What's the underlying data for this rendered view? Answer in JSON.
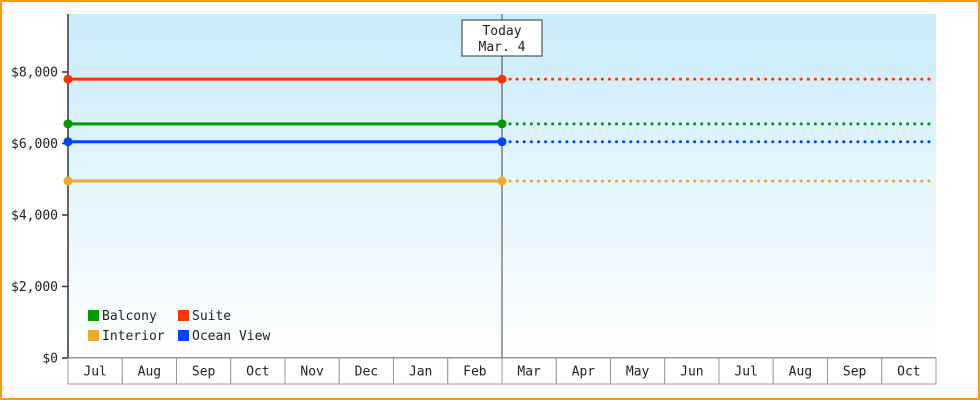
{
  "chart_data": {
    "type": "line",
    "title": "",
    "x_categories": [
      "Jul",
      "Aug",
      "Sep",
      "Oct",
      "Nov",
      "Dec",
      "Jan",
      "Feb",
      "Mar",
      "Apr",
      "May",
      "Jun",
      "Jul",
      "Aug",
      "Sep",
      "Oct"
    ],
    "y_ticks": [
      {
        "label": "$0",
        "value": 0
      },
      {
        "label": "$2,000",
        "value": 2000
      },
      {
        "label": "$4,000",
        "value": 4000
      },
      {
        "label": "$6,000",
        "value": 6000
      },
      {
        "label": "$8,000",
        "value": 8000
      }
    ],
    "ylim": [
      0,
      9600
    ],
    "series": [
      {
        "name": "Balcony",
        "color": "#009b00",
        "value": 6550
      },
      {
        "name": "Suite",
        "color": "#ff3300",
        "value": 7800
      },
      {
        "name": "Interior",
        "color": "#efaa2e",
        "value": 4950
      },
      {
        "name": "Ocean View",
        "color": "#0044ff",
        "value": 6050
      }
    ],
    "today": {
      "label_line1": "Today",
      "label_line2": "Mar. 4",
      "x_category_index": 8
    },
    "legend": {
      "position": "bottom-left",
      "rows": [
        [
          "Balcony",
          "Suite"
        ],
        [
          "Interior",
          "Ocean View"
        ]
      ]
    },
    "style": {
      "solid_before_today": true,
      "dotted_after_today": true,
      "markers": [
        "series-start",
        "today"
      ]
    }
  },
  "colors": {
    "border": "#ff9900",
    "plot_bg_top": "#c9ebfa",
    "plot_bg_bottom": "#ffffff",
    "axis": "#333333",
    "month_cell_border": "#999999",
    "month_cell_fill": "#ffffff",
    "today_line": "#444444",
    "today_box_border": "#333333",
    "text": "#222222"
  }
}
